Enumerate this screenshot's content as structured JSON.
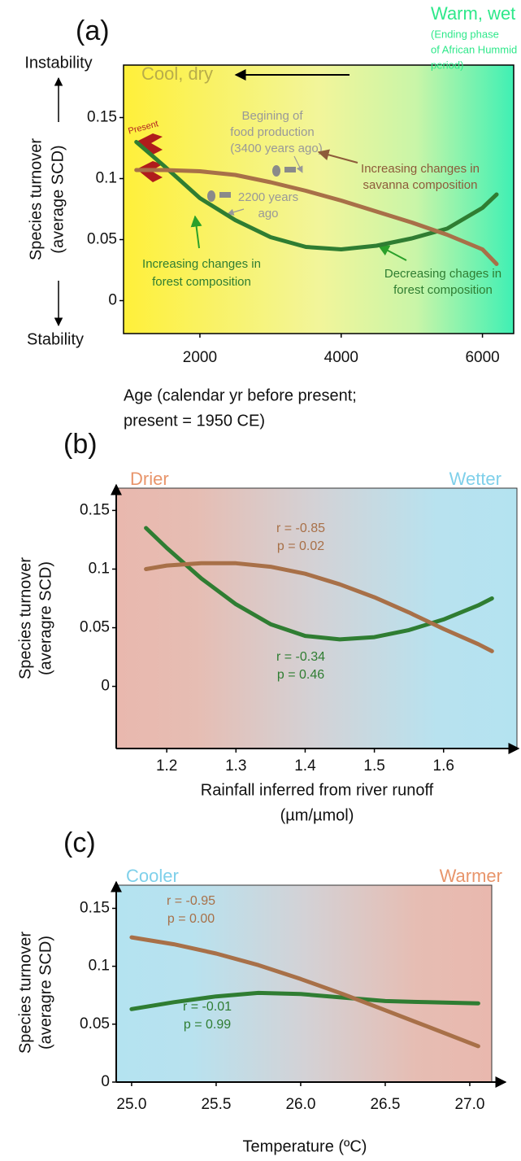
{
  "chart_data": [
    {
      "type": "line",
      "title": "(a)",
      "x_label": [
        "Age (calendar yr before present;",
        "present = 1950 CE)"
      ],
      "y_label": [
        "Species turnover",
        "(average SCD)"
      ],
      "y_ends": [
        "Instability",
        "Stability"
      ],
      "climate_labels": [
        "Cool, dry",
        "Warm, wet",
        "(Ending phase",
        "of African Hummid",
        "period)"
      ],
      "annotations": [
        "Present",
        "Begining of",
        "food production",
        "(3400 years ago)",
        "2200 years",
        "ago",
        "Increasing changes in",
        "savanna composition",
        "Increasing changes in",
        "forest composition",
        "Decreasing chages in",
        "forest composition"
      ],
      "x": [
        1100,
        1500,
        2000,
        2500,
        3000,
        3500,
        4000,
        4500,
        5000,
        5500,
        6000,
        6200
      ],
      "series": [
        {
          "color": "#2f7d32",
          "values": [
            0.13,
            0.11,
            0.084,
            0.066,
            0.052,
            0.044,
            0.042,
            0.045,
            0.051,
            0.059,
            0.076,
            0.087
          ]
        },
        {
          "color": "#a87048",
          "values": [
            0.107,
            0.107,
            0.106,
            0.103,
            0.097,
            0.09,
            0.082,
            0.073,
            0.064,
            0.054,
            0.042,
            0.03
          ]
        }
      ],
      "xlim": [
        919,
        6442
      ],
      "ylim": [
        -0.027,
        0.193
      ],
      "xticks": [
        2000,
        4000,
        6000
      ],
      "yticks": [
        0,
        0.05,
        0.1,
        0.15
      ]
    },
    {
      "type": "line",
      "title": "(b)",
      "x_label": [
        "Rainfall inferred from river runoff",
        "(µm/µmol)"
      ],
      "y_label": [
        "Species turnover",
        "(averagre SCD)"
      ],
      "climate_labels": [
        "Drier",
        "Wetter"
      ],
      "annotations": [
        "r = -0.85",
        "p = 0.02",
        "r = -0.34",
        "p = 0.46"
      ],
      "x": [
        1.17,
        1.2,
        1.25,
        1.3,
        1.35,
        1.4,
        1.45,
        1.5,
        1.55,
        1.6,
        1.65,
        1.67
      ],
      "series": [
        {
          "color": "#2f7d32",
          "values": [
            0.135,
            0.118,
            0.092,
            0.07,
            0.053,
            0.043,
            0.04,
            0.042,
            0.048,
            0.057,
            0.069,
            0.075
          ]
        },
        {
          "color": "#a87048",
          "values": [
            0.1,
            0.103,
            0.105,
            0.105,
            0.102,
            0.096,
            0.087,
            0.076,
            0.063,
            0.049,
            0.036,
            0.03
          ]
        }
      ],
      "xlim": [
        1.127,
        1.706
      ],
      "ylim": [
        -0.053,
        0.169
      ],
      "xticks": [
        1.2,
        1.3,
        1.4,
        1.5,
        1.6
      ],
      "yticks": [
        0,
        0.05,
        0.1,
        0.15
      ]
    },
    {
      "type": "line",
      "title": "(c)",
      "x_label": [
        "Temperature (ºC)"
      ],
      "y_label": [
        "Species turnover",
        "(averagre SCD)"
      ],
      "climate_labels": [
        "Cooler",
        "Warmer"
      ],
      "annotations": [
        "r = -0.95",
        "p = 0.00",
        "r = -0.01",
        "p = 0.99"
      ],
      "x": [
        25.0,
        25.25,
        25.5,
        25.75,
        26.0,
        26.25,
        26.5,
        26.75,
        27.05
      ],
      "series": [
        {
          "color": "#2f7d32",
          "values": [
            0.063,
            0.069,
            0.074,
            0.077,
            0.076,
            0.073,
            0.07,
            0.069,
            0.068
          ]
        },
        {
          "color": "#a87048",
          "values": [
            0.125,
            0.119,
            0.111,
            0.101,
            0.089,
            0.076,
            0.062,
            0.048,
            0.031
          ]
        }
      ],
      "xlim": [
        24.909,
        27.13
      ],
      "ylim": [
        0,
        0.17
      ],
      "xticks": [
        {
          "value": 25,
          "label": "25.0"
        },
        25.5,
        {
          "value": 26,
          "label": "26.0"
        },
        26.5,
        {
          "value": 27,
          "label": "27.0"
        }
      ],
      "yticks": [
        0,
        0.05,
        0.1,
        0.15
      ]
    }
  ]
}
